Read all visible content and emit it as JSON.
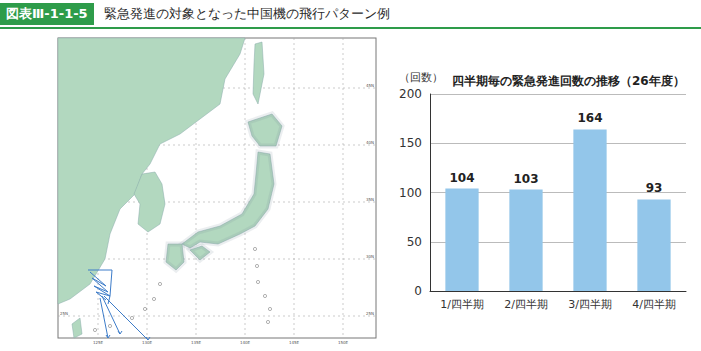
{
  "header": {
    "figure_number": "図表Ⅲ-1-1-5",
    "title": "緊急発進の対象となった中国機の飛行パターン例"
  },
  "map": {
    "lon_labels": [
      "125E",
      "130E",
      "135E",
      "140E",
      "145E",
      "150E"
    ],
    "lat_labels": [
      "45N",
      "40N",
      "35N",
      "30N",
      "25N"
    ]
  },
  "chart_data": {
    "type": "bar",
    "title": "四半期毎の緊急発進回数の推移（26年度）",
    "y_label": "（回数）",
    "categories": [
      "1/四半期",
      "2/四半期",
      "3/四半期",
      "4/四半期"
    ],
    "values": [
      104,
      103,
      164,
      93
    ],
    "color": "#93c6ea",
    "ylim": [
      0,
      200
    ],
    "yticks": [
      0,
      50,
      100,
      150,
      200
    ],
    "grid": true,
    "data_labels": true
  }
}
